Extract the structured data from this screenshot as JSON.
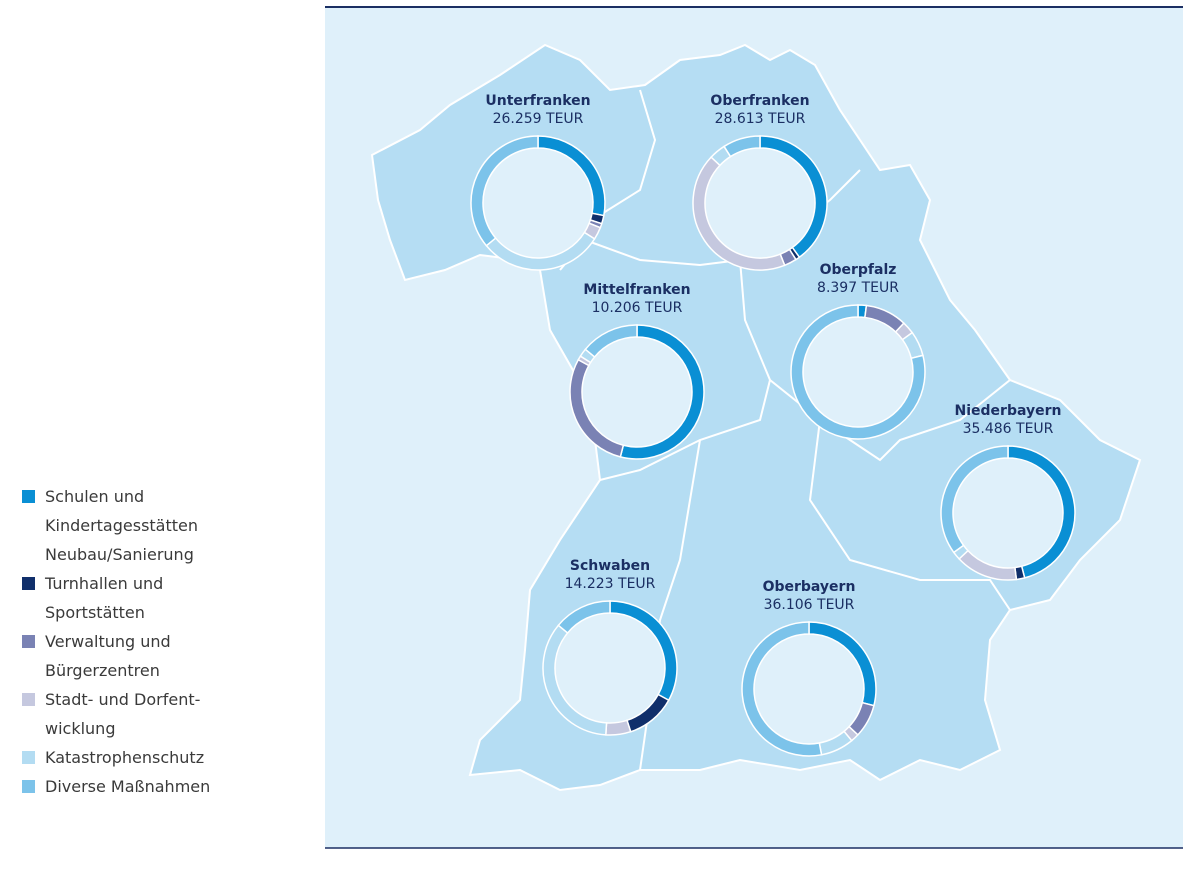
{
  "chart_data": {
    "type": "donut",
    "categories": [
      "Schulen und Kindertagesstätten Neubau/Sanierung",
      "Turnhallen und Sportstätten",
      "Verwaltung und Bürgerzentren",
      "Stadt- und Dorfent­wicklung",
      "Katastrophenschutz",
      "Diverse Maßnahmen"
    ],
    "colors": [
      "#0a8fd4",
      "#102f6b",
      "#7a82b4",
      "#c5c8df",
      "#b3dcf2",
      "#7cc3ea"
    ],
    "regions": [
      {
        "name": "Unterfranken",
        "total": "26.259 TEUR",
        "values": [
          28,
          2,
          1,
          3,
          30,
          36
        ]
      },
      {
        "name": "Oberfranken",
        "total": "28.613 TEUR",
        "values": [
          40,
          1,
          3,
          43,
          4,
          9
        ]
      },
      {
        "name": "Mittelfranken",
        "total": "10.206 TEUR",
        "values": [
          54,
          0,
          29,
          1,
          2,
          14
        ]
      },
      {
        "name": "Oberpfalz",
        "total": "8.397 TEUR",
        "values": [
          2,
          0,
          10,
          3,
          6,
          79
        ]
      },
      {
        "name": "Niederbayern",
        "total": "35.486 TEUR",
        "values": [
          46,
          2,
          0,
          15,
          2,
          35
        ]
      },
      {
        "name": "Schwaben",
        "total": "14.223 TEUR",
        "values": [
          33,
          12,
          0,
          6,
          35,
          14
        ]
      },
      {
        "name": "Oberbayern",
        "total": "36.106 TEUR",
        "values": [
          29,
          0,
          8,
          2,
          8,
          53
        ]
      }
    ]
  }
}
